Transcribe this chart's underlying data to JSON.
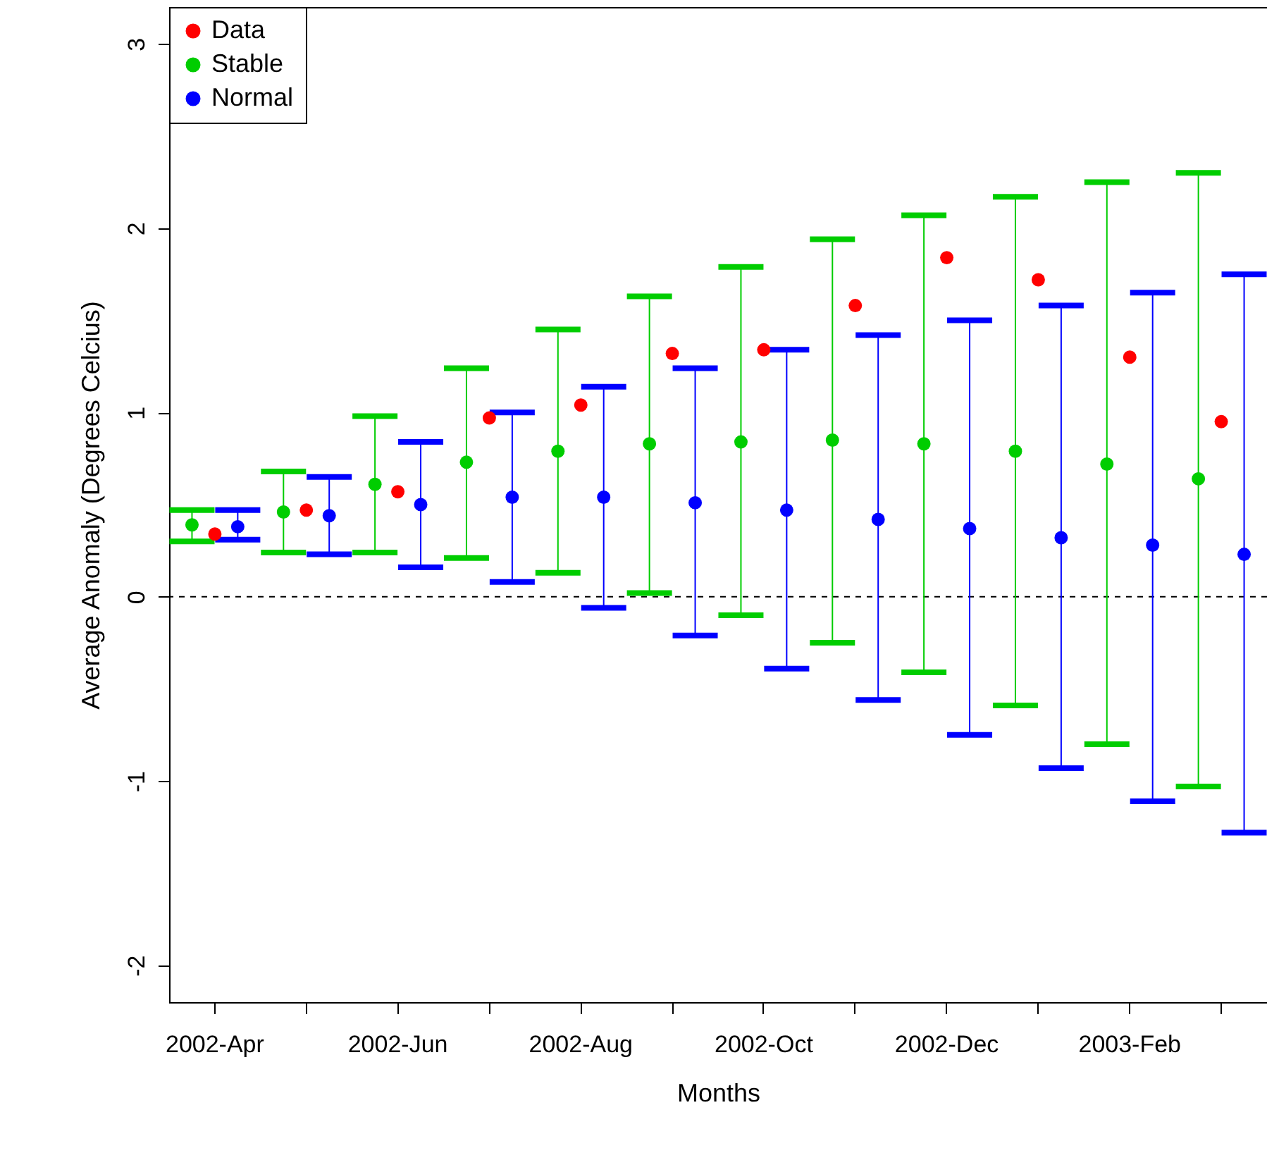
{
  "chart_data": {
    "type": "scatter",
    "xlabel": "Months",
    "ylabel": "Average Anomaly (Degrees Celcius)",
    "categories": [
      "2002-Apr",
      null,
      "2002-Jun",
      null,
      "2002-Aug",
      null,
      "2002-Oct",
      null,
      "2002-Dec",
      null,
      "2003-Feb",
      null
    ],
    "series": [
      {
        "name": "Data",
        "color": "#ff0000",
        "values": [
          0.34,
          0.47,
          0.57,
          0.97,
          1.04,
          1.32,
          1.34,
          1.58,
          1.84,
          1.72,
          1.3,
          0.95
        ]
      },
      {
        "name": "Stable",
        "color": "#00cd00",
        "values": [
          0.39,
          0.46,
          0.61,
          0.73,
          0.79,
          0.83,
          0.84,
          0.85,
          0.83,
          0.79,
          0.72,
          0.64
        ],
        "errors": [
          [
            0.3,
            0.47
          ],
          [
            0.24,
            0.68
          ],
          [
            0.24,
            0.98
          ],
          [
            0.21,
            1.24
          ],
          [
            0.13,
            1.45
          ],
          [
            0.02,
            1.63
          ],
          [
            -0.1,
            1.79
          ],
          [
            -0.25,
            1.94
          ],
          [
            -0.41,
            2.07
          ],
          [
            -0.59,
            2.17
          ],
          [
            -0.8,
            2.25
          ],
          [
            -1.03,
            2.3
          ]
        ]
      },
      {
        "name": "Normal",
        "color": "#0000ff",
        "values": [
          0.38,
          0.44,
          0.5,
          0.54,
          0.54,
          0.51,
          0.47,
          0.42,
          0.37,
          0.32,
          0.28,
          0.23
        ],
        "errors": [
          [
            0.31,
            0.47
          ],
          [
            0.23,
            0.65
          ],
          [
            0.16,
            0.84
          ],
          [
            0.08,
            1.0
          ],
          [
            -0.06,
            1.14
          ],
          [
            -0.21,
            1.24
          ],
          [
            -0.39,
            1.34
          ],
          [
            -0.56,
            1.42
          ],
          [
            -0.75,
            1.5
          ],
          [
            -0.93,
            1.58
          ],
          [
            -1.11,
            1.65
          ],
          [
            -1.28,
            1.75
          ]
        ]
      }
    ],
    "ylim": [
      -2.2,
      3.2
    ],
    "yticks": [
      -2,
      -1,
      0,
      1,
      2,
      3
    ],
    "grid": false,
    "legend": "top left",
    "marker": "circle",
    "ref_lines": [
      {
        "axis": "y",
        "value": 0,
        "line_style": "dashed",
        "color": "#000000"
      }
    ]
  }
}
